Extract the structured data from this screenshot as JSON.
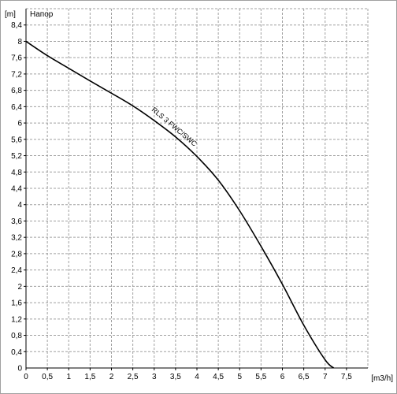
{
  "chart_data": {
    "type": "line",
    "title": "Напор",
    "xlabel": "[m3/h]",
    "ylabel": "[m]",
    "xlim": [
      0,
      8.0
    ],
    "ylim": [
      0,
      8.8
    ],
    "x_ticks": [
      "0",
      "0,5",
      "1",
      "1,5",
      "2",
      "2,5",
      "3",
      "3,5",
      "4",
      "4,5",
      "5",
      "5,5",
      "6",
      "6,5",
      "7",
      "7,5"
    ],
    "y_ticks": [
      "0,4",
      "0,8",
      "1,2",
      "1,6",
      "2",
      "2,4",
      "2,8",
      "3,2",
      "3,6",
      "4",
      "4,4",
      "4,8",
      "5,2",
      "5,6",
      "6",
      "6,4",
      "6,8",
      "7,2",
      "7,6",
      "8",
      "8,4"
    ],
    "grid": true,
    "series": [
      {
        "name": "RLS 3 FWC/SWC",
        "x": [
          0,
          0.5,
          1,
          1.5,
          2,
          2.5,
          3,
          3.5,
          4,
          4.5,
          5,
          5.5,
          6,
          6.5,
          7,
          7.2
        ],
        "y": [
          8.0,
          7.65,
          7.34,
          7.03,
          6.73,
          6.42,
          6.06,
          5.66,
          5.18,
          4.6,
          3.85,
          2.98,
          2.05,
          1.05,
          0.2,
          0.0
        ]
      }
    ],
    "colors": {
      "line": "#000000",
      "grid": "#a0a0a0",
      "axis": "#000000"
    }
  }
}
